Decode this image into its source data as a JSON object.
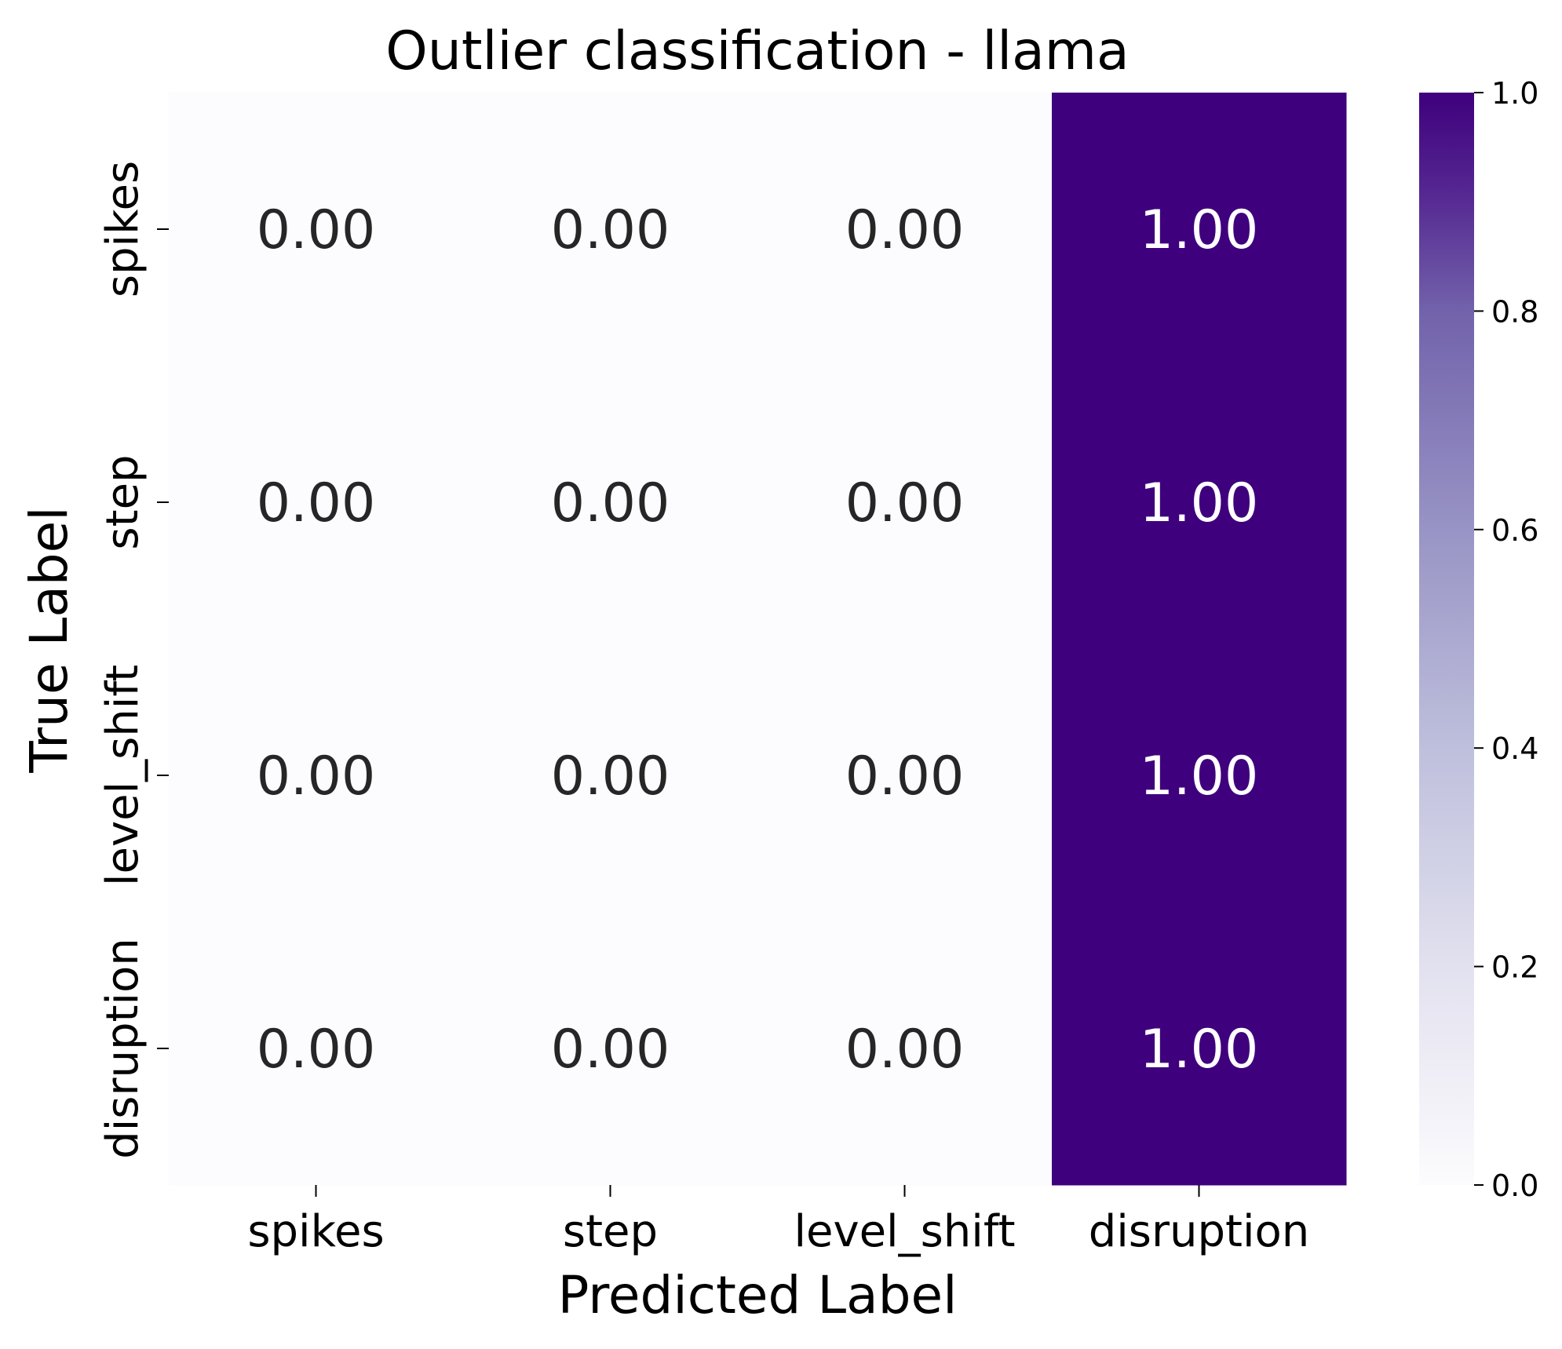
{
  "chart_data": {
    "type": "heatmap",
    "title": "Outlier classification - llama",
    "xlabel": "Predicted Label",
    "ylabel": "True Label",
    "x_categories": [
      "spikes",
      "step",
      "level_shift",
      "disruption"
    ],
    "y_categories": [
      "spikes",
      "step",
      "level_shift",
      "disruption"
    ],
    "values": [
      [
        0.0,
        0.0,
        0.0,
        1.0
      ],
      [
        0.0,
        0.0,
        0.0,
        1.0
      ],
      [
        0.0,
        0.0,
        0.0,
        1.0
      ],
      [
        0.0,
        0.0,
        0.0,
        1.0
      ]
    ],
    "annotation_format": "0.00",
    "colormap": "Purples",
    "colorbar": {
      "range": [
        0.0,
        1.0
      ],
      "ticks": [
        0.0,
        0.2,
        0.4,
        0.6,
        0.8,
        1.0
      ],
      "tick_labels": [
        "0.0",
        "0.2",
        "0.4",
        "0.6",
        "0.8",
        "1.0"
      ]
    },
    "colors": {
      "low": "#fcfbfd",
      "high": "#3f007d",
      "text_dark": "#262626",
      "text_light": "#ffffff"
    }
  }
}
